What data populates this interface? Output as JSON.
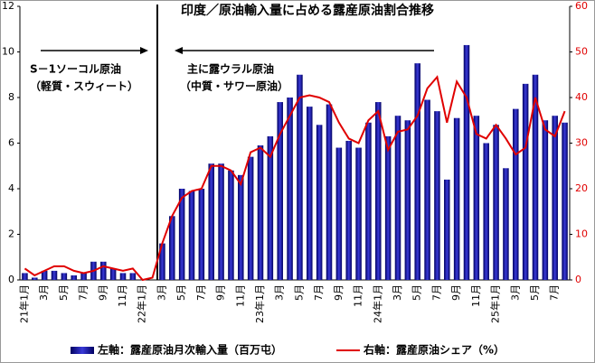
{
  "chart_data": {
    "type": "bar_line",
    "title": "印度／原油輸入量に占める露産原油割合推移",
    "annotations": [
      "S－1ソーコル原油",
      "（軽質・スウィート）",
      "主に露ウラル原油",
      "（中質・サワー原油）"
    ],
    "categories": [
      "21年1月",
      null,
      "3月",
      null,
      "5月",
      null,
      "7月",
      null,
      "9月",
      null,
      "11月",
      null,
      "22年1月",
      null,
      "3月",
      null,
      "5月",
      null,
      "7月",
      null,
      "9月",
      null,
      "11月",
      null,
      "23年1月",
      null,
      "3月",
      null,
      "5月",
      null,
      "7月",
      null,
      "9月",
      null,
      "11月",
      null,
      "24年1月",
      null,
      "3月",
      null,
      "5月",
      null,
      "7月",
      null,
      "9月",
      null,
      "11月",
      null,
      "25年1月",
      null,
      "3月",
      null,
      "5月",
      null,
      "7月",
      null
    ],
    "series": [
      {
        "name": "左軸：露産原油月次輸入量（百万屯）",
        "type": "bar",
        "color": "#1a1a9c",
        "values": [
          0.3,
          0.1,
          0.4,
          0.4,
          0.3,
          0.2,
          0.3,
          0.8,
          0.8,
          0.5,
          0.3,
          0.3,
          0.0,
          0.0,
          1.6,
          2.8,
          4.0,
          3.9,
          4.0,
          5.1,
          5.1,
          4.8,
          4.6,
          5.4,
          5.9,
          6.3,
          7.8,
          8.0,
          9.0,
          7.6,
          6.8,
          7.7,
          5.8,
          6.1,
          5.8,
          6.9,
          7.8,
          6.3,
          7.2,
          7.0,
          9.5,
          7.9,
          7.4,
          4.4,
          7.1,
          10.3,
          7.2,
          6.0,
          6.8,
          4.9,
          7.5,
          8.6,
          9.0,
          7.0,
          7.2,
          6.9
        ]
      },
      {
        "name": "右軸：露産原油シェア（%）",
        "type": "line",
        "axis": "y2",
        "color": "#e00000",
        "values": [
          2.5,
          1,
          2,
          3,
          3,
          2,
          1.5,
          2,
          3,
          2.5,
          2,
          2.5,
          0,
          0.5,
          8,
          14,
          18,
          19.5,
          20,
          25,
          25,
          24,
          21,
          28,
          29,
          27,
          32,
          36,
          40,
          40.5,
          40,
          39,
          34.5,
          31,
          30,
          35,
          37,
          28.5,
          32.5,
          33,
          36,
          42,
          44.5,
          34.5,
          43.5,
          40,
          32,
          31,
          34,
          31,
          27.5,
          29,
          40,
          33,
          31.5,
          37
        ]
      }
    ],
    "ylim": [
      0,
      12
    ],
    "yticks": [
      0,
      2,
      4,
      6,
      8,
      10,
      12
    ],
    "y2lim": [
      0,
      60
    ],
    "y2ticks": [
      0,
      10,
      20,
      30,
      40,
      50,
      60
    ],
    "y2_color": "#e00000",
    "grid": false,
    "legend": "bottom"
  }
}
